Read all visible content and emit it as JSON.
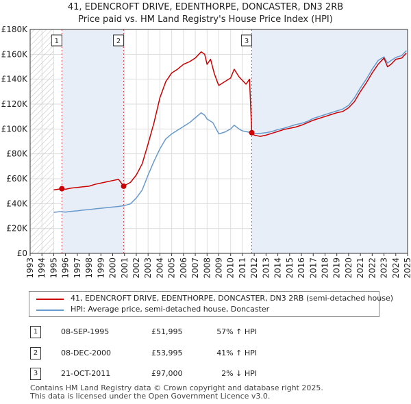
{
  "title_line1": "41, EDENCROFT DRIVE, EDENTHORPE, DONCASTER, DN3 2RB",
  "title_line2": "Price paid vs. HM Land Registry's House Price Index (HPI)",
  "colors": {
    "property": "#cc0000",
    "hpi": "#6699cc",
    "shade": "#e8eef8"
  },
  "chart_data": {
    "type": "line",
    "xlim": [
      1993,
      2025
    ],
    "ylim": [
      0,
      180000
    ],
    "y_ticks": [
      0,
      20000,
      40000,
      60000,
      80000,
      100000,
      120000,
      140000,
      160000,
      180000
    ],
    "y_tick_labels": [
      "£0",
      "£20K",
      "£40K",
      "£60K",
      "£80K",
      "£100K",
      "£120K",
      "£140K",
      "£160K",
      "£180K"
    ],
    "x_tick_labels": [
      "1993",
      "1994",
      "1995",
      "1996",
      "1997",
      "1998",
      "1999",
      "2000",
      "2001",
      "2002",
      "2003",
      "2004",
      "2005",
      "2006",
      "2007",
      "2008",
      "2009",
      "2010",
      "2011",
      "2012",
      "2013",
      "2014",
      "2015",
      "2016",
      "2017",
      "2018",
      "2019",
      "2020",
      "2021",
      "2022",
      "2023",
      "2024",
      "2025"
    ],
    "hatched_range": [
      1993,
      1995.0
    ],
    "series": [
      {
        "name": "41, EDENCROFT DRIVE, EDENTHORPE, DONCASTER, DN3 2RB (semi-detached house)",
        "color": "#cc0000",
        "points": [
          [
            1995.0,
            51000
          ],
          [
            1995.69,
            51995
          ],
          [
            1996.0,
            51500
          ],
          [
            1996.5,
            52500
          ],
          [
            1997.0,
            53000
          ],
          [
            1997.5,
            53500
          ],
          [
            1998.0,
            54000
          ],
          [
            1998.5,
            55500
          ],
          [
            1999.0,
            56500
          ],
          [
            1999.5,
            57500
          ],
          [
            2000.0,
            58500
          ],
          [
            2000.5,
            59500
          ],
          [
            2000.93,
            53995
          ],
          [
            2001.0,
            54500
          ],
          [
            2001.5,
            57000
          ],
          [
            2002.0,
            63000
          ],
          [
            2002.5,
            72000
          ],
          [
            2003.0,
            88000
          ],
          [
            2003.5,
            105000
          ],
          [
            2004.0,
            125000
          ],
          [
            2004.5,
            138000
          ],
          [
            2005.0,
            145000
          ],
          [
            2005.5,
            148000
          ],
          [
            2006.0,
            152000
          ],
          [
            2006.5,
            154000
          ],
          [
            2007.0,
            157000
          ],
          [
            2007.5,
            162000
          ],
          [
            2007.8,
            160000
          ],
          [
            2008.0,
            152000
          ],
          [
            2008.3,
            156000
          ],
          [
            2008.6,
            145000
          ],
          [
            2008.9,
            137000
          ],
          [
            2009.0,
            135000
          ],
          [
            2009.5,
            138000
          ],
          [
            2010.0,
            141000
          ],
          [
            2010.3,
            148000
          ],
          [
            2010.7,
            142000
          ],
          [
            2011.0,
            139000
          ],
          [
            2011.3,
            136000
          ],
          [
            2011.6,
            140000
          ],
          [
            2011.79,
            97000
          ],
          [
            2012.0,
            95000
          ],
          [
            2012.5,
            94000
          ],
          [
            2013.0,
            95000
          ],
          [
            2013.5,
            96500
          ],
          [
            2014.0,
            98000
          ],
          [
            2014.5,
            99500
          ],
          [
            2015.0,
            100500
          ],
          [
            2015.5,
            101500
          ],
          [
            2016.0,
            103000
          ],
          [
            2016.5,
            105000
          ],
          [
            2017.0,
            107000
          ],
          [
            2017.5,
            108500
          ],
          [
            2018.0,
            110000
          ],
          [
            2018.5,
            111500
          ],
          [
            2019.0,
            113000
          ],
          [
            2019.5,
            114000
          ],
          [
            2020.0,
            117000
          ],
          [
            2020.5,
            122000
          ],
          [
            2021.0,
            130000
          ],
          [
            2021.5,
            137000
          ],
          [
            2022.0,
            145000
          ],
          [
            2022.5,
            152000
          ],
          [
            2023.0,
            157000
          ],
          [
            2023.3,
            150000
          ],
          [
            2023.6,
            152000
          ],
          [
            2024.0,
            156000
          ],
          [
            2024.5,
            157000
          ],
          [
            2024.9,
            161000
          ]
        ]
      },
      {
        "name": "HPI: Average price, semi-detached house, Doncaster",
        "color": "#6699cc",
        "points": [
          [
            1995.0,
            33000
          ],
          [
            1995.5,
            33500
          ],
          [
            1996.0,
            33200
          ],
          [
            1996.5,
            33800
          ],
          [
            1997.0,
            34200
          ],
          [
            1997.5,
            34800
          ],
          [
            1998.0,
            35200
          ],
          [
            1998.5,
            35800
          ],
          [
            1999.0,
            36300
          ],
          [
            1999.5,
            36700
          ],
          [
            2000.0,
            37200
          ],
          [
            2000.5,
            37700
          ],
          [
            2001.0,
            38400
          ],
          [
            2001.5,
            39800
          ],
          [
            2002.0,
            44500
          ],
          [
            2002.5,
            51000
          ],
          [
            2003.0,
            63000
          ],
          [
            2003.5,
            74000
          ],
          [
            2004.0,
            84000
          ],
          [
            2004.5,
            92000
          ],
          [
            2005.0,
            96000
          ],
          [
            2005.5,
            99000
          ],
          [
            2006.0,
            102000
          ],
          [
            2006.5,
            105000
          ],
          [
            2007.0,
            109000
          ],
          [
            2007.5,
            113000
          ],
          [
            2007.8,
            111000
          ],
          [
            2008.0,
            108000
          ],
          [
            2008.5,
            105000
          ],
          [
            2009.0,
            96000
          ],
          [
            2009.5,
            97500
          ],
          [
            2010.0,
            100000
          ],
          [
            2010.3,
            103000
          ],
          [
            2010.7,
            100000
          ],
          [
            2011.0,
            98500
          ],
          [
            2011.5,
            97500
          ],
          [
            2012.0,
            96500
          ],
          [
            2012.5,
            96500
          ],
          [
            2013.0,
            97000
          ],
          [
            2013.5,
            98000
          ],
          [
            2014.0,
            99500
          ],
          [
            2014.5,
            100500
          ],
          [
            2015.0,
            102000
          ],
          [
            2015.5,
            103500
          ],
          [
            2016.0,
            104500
          ],
          [
            2016.5,
            106000
          ],
          [
            2017.0,
            108500
          ],
          [
            2017.5,
            110000
          ],
          [
            2018.0,
            111500
          ],
          [
            2018.5,
            113000
          ],
          [
            2019.0,
            114500
          ],
          [
            2019.5,
            116000
          ],
          [
            2020.0,
            119000
          ],
          [
            2020.5,
            125000
          ],
          [
            2021.0,
            133000
          ],
          [
            2021.5,
            140000
          ],
          [
            2022.0,
            148000
          ],
          [
            2022.5,
            155000
          ],
          [
            2023.0,
            158000
          ],
          [
            2023.3,
            153000
          ],
          [
            2023.6,
            155000
          ],
          [
            2024.0,
            157500
          ],
          [
            2024.5,
            159000
          ],
          [
            2024.9,
            163000
          ]
        ]
      }
    ],
    "sales": [
      {
        "label": "1",
        "x": 1995.69,
        "price": 51995
      },
      {
        "label": "2",
        "x": 2000.93,
        "price": 53995
      },
      {
        "label": "3",
        "x": 2011.79,
        "price": 97000
      }
    ]
  },
  "legend": {
    "property": "41, EDENCROFT DRIVE, EDENTHORPE, DONCASTER, DN3 2RB (semi-detached house)",
    "hpi": "HPI: Average price, semi-detached house, Doncaster"
  },
  "transactions": [
    {
      "num": "1",
      "date": "08-SEP-1995",
      "price": "£51,995",
      "hpi": "57% ↑ HPI"
    },
    {
      "num": "2",
      "date": "08-DEC-2000",
      "price": "£53,995",
      "hpi": "41% ↑ HPI"
    },
    {
      "num": "3",
      "date": "21-OCT-2011",
      "price": "£97,000",
      "hpi": "2% ↓ HPI"
    }
  ],
  "footer_line1": "Contains HM Land Registry data © Crown copyright and database right 2025.",
  "footer_line2": "This data is licensed under the Open Government Licence v3.0."
}
